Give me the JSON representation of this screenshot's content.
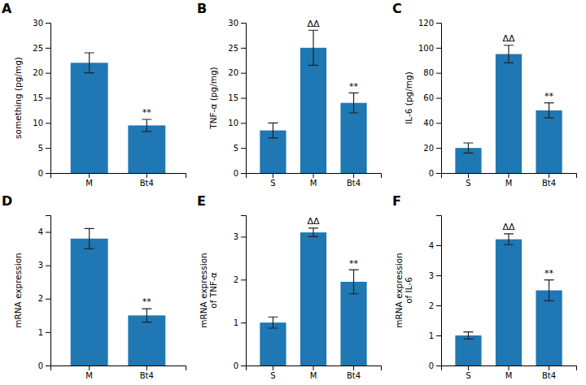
{
  "chart_data": [
    {
      "type": "bar",
      "title": "A",
      "categories": [
        "M",
        "Bt4"
      ],
      "values": [
        22.0,
        9.5
      ],
      "errors": [
        2.0,
        1.2
      ],
      "ylabel": "something (pg/mg)",
      "ylim": [
        0,
        30
      ],
      "yticks": [
        0,
        5,
        10,
        15,
        20,
        25,
        30
      ],
      "grid": false,
      "annotations": [
        {
          "bar": 1,
          "text": "**"
        }
      ]
    },
    {
      "type": "bar",
      "title": "B",
      "categories": [
        "S",
        "M",
        "Bt4"
      ],
      "values": [
        8.5,
        25.0,
        14.0
      ],
      "errors": [
        1.5,
        3.5,
        2.0
      ],
      "ylabel": "TNF-α (pg/mg)",
      "ylim": [
        0,
        30
      ],
      "yticks": [
        0,
        5,
        10,
        15,
        20,
        25,
        30
      ],
      "grid": false,
      "annotations": [
        {
          "bar": 1,
          "text": "ΔΔ"
        },
        {
          "bar": 2,
          "text": "**"
        }
      ]
    },
    {
      "type": "bar",
      "title": "C",
      "categories": [
        "S",
        "M",
        "Bt4"
      ],
      "values": [
        20.0,
        95.0,
        50.0
      ],
      "errors": [
        4.0,
        7.0,
        6.0
      ],
      "ylabel": "IL-6 (pg/mg)",
      "ylim": [
        0,
        120
      ],
      "yticks": [
        0,
        20,
        40,
        60,
        80,
        100,
        120
      ],
      "grid": false,
      "annotations": [
        {
          "bar": 1,
          "text": "ΔΔ"
        },
        {
          "bar": 2,
          "text": "**"
        }
      ]
    },
    {
      "type": "bar",
      "title": "D",
      "categories": [
        "M",
        "Bt4"
      ],
      "values": [
        3.8,
        1.5
      ],
      "errors": [
        0.3,
        0.2
      ],
      "ylabel": "mRNA expression",
      "ylim": [
        0,
        4.5
      ],
      "yticks": [
        0,
        1,
        2,
        3,
        4
      ],
      "grid": false,
      "annotations": [
        {
          "bar": 1,
          "text": "**"
        }
      ]
    },
    {
      "type": "bar",
      "title": "E",
      "categories": [
        "S",
        "M",
        "Bt4"
      ],
      "values": [
        1.0,
        3.1,
        1.95
      ],
      "errors": [
        0.13,
        0.1,
        0.28
      ],
      "ylabel": "mRNA expression\nof TNF-α",
      "ylim": [
        0,
        3.5
      ],
      "yticks": [
        0,
        1,
        2,
        3
      ],
      "grid": false,
      "annotations": [
        {
          "bar": 1,
          "text": "ΔΔ"
        },
        {
          "bar": 2,
          "text": "**"
        }
      ]
    },
    {
      "type": "bar",
      "title": "F",
      "categories": [
        "S",
        "M",
        "Bt4"
      ],
      "values": [
        1.0,
        4.2,
        2.5
      ],
      "errors": [
        0.12,
        0.18,
        0.35
      ],
      "ylabel": "mRNA expression\nof IL-6",
      "ylim": [
        0,
        5
      ],
      "yticks": [
        0,
        1,
        2,
        3,
        4
      ],
      "grid": false,
      "annotations": [
        {
          "bar": 1,
          "text": "ΔΔ"
        },
        {
          "bar": 2,
          "text": "**"
        }
      ]
    }
  ]
}
